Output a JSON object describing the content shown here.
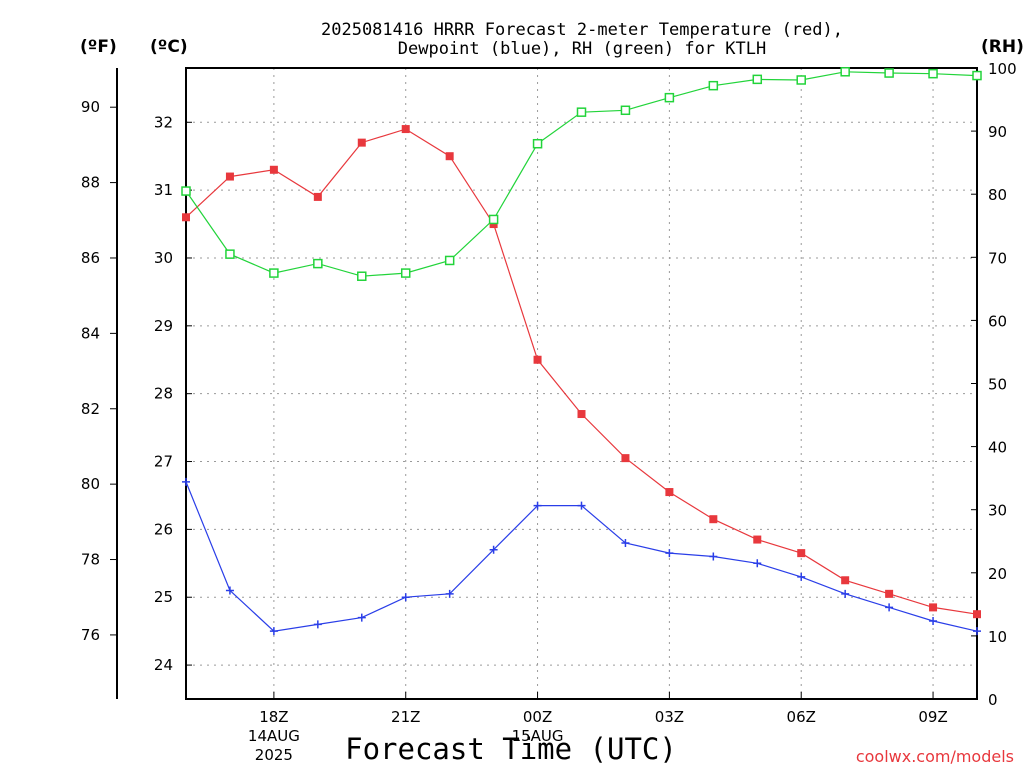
{
  "chart_data": {
    "type": "line",
    "title_line1": "2025081416 HRRR Forecast 2-meter Temperature (red),",
    "title_line2": "Dewpoint (blue), RH (green) for KTLH",
    "xlabel": "Forecast Time (UTC)",
    "watermark": "coolwx.com/models",
    "units": {
      "fahrenheit": "(ºF)",
      "celsius": "(ºC)",
      "rh": "(RH)"
    },
    "x_hours": [
      0,
      1,
      2,
      3,
      4,
      5,
      6,
      7,
      8,
      9,
      10,
      11,
      12,
      13,
      14,
      15,
      16,
      17,
      18
    ],
    "x_ticks": [
      {
        "hour": 2,
        "label": "18Z",
        "sub1": "14AUG",
        "sub2": "2025"
      },
      {
        "hour": 5,
        "label": "21Z",
        "sub1": "",
        "sub2": ""
      },
      {
        "hour": 8,
        "label": "00Z",
        "sub1": "15AUG",
        "sub2": ""
      },
      {
        "hour": 11,
        "label": "03Z",
        "sub1": "",
        "sub2": ""
      },
      {
        "hour": 14,
        "label": "06Z",
        "sub1": "",
        "sub2": ""
      },
      {
        "hour": 17,
        "label": "09Z",
        "sub1": "",
        "sub2": ""
      }
    ],
    "ylim_celsius": [
      23.5,
      32.8
    ],
    "celsius_ticks": [
      24,
      25,
      26,
      27,
      28,
      29,
      30,
      31,
      32
    ],
    "fahrenheit_ticks": [
      76,
      78,
      80,
      82,
      84,
      86,
      88,
      90
    ],
    "rh_ticks": [
      0,
      10,
      20,
      30,
      40,
      50,
      60,
      70,
      80,
      90,
      100
    ],
    "ylim_rh": [
      0,
      100
    ],
    "series": [
      {
        "key": "temperature",
        "color": "#e8383d",
        "marker": "filled-square",
        "values": [
          30.6,
          31.2,
          31.3,
          30.9,
          31.7,
          31.9,
          31.5,
          30.5,
          28.5,
          27.7,
          27.05,
          26.55,
          26.15,
          25.85,
          25.65,
          25.25,
          25.05,
          24.85,
          24.75
        ]
      },
      {
        "key": "dewpoint",
        "color": "#2a3ee8",
        "marker": "plus",
        "values": [
          26.7,
          25.1,
          24.5,
          24.6,
          24.7,
          25.0,
          25.05,
          25.7,
          26.35,
          26.35,
          25.8,
          25.65,
          25.6,
          25.5,
          25.3,
          25.05,
          24.85,
          24.65,
          24.5
        ]
      },
      {
        "key": "rh",
        "color": "#22d43a",
        "marker": "open-square",
        "values": [
          80.5,
          70.5,
          67.5,
          69.0,
          67.0,
          67.5,
          69.5,
          76.0,
          88.0,
          93.0,
          93.3,
          95.3,
          97.2,
          98.2,
          98.1,
          99.4,
          99.2,
          99.1,
          98.8
        ]
      }
    ]
  }
}
